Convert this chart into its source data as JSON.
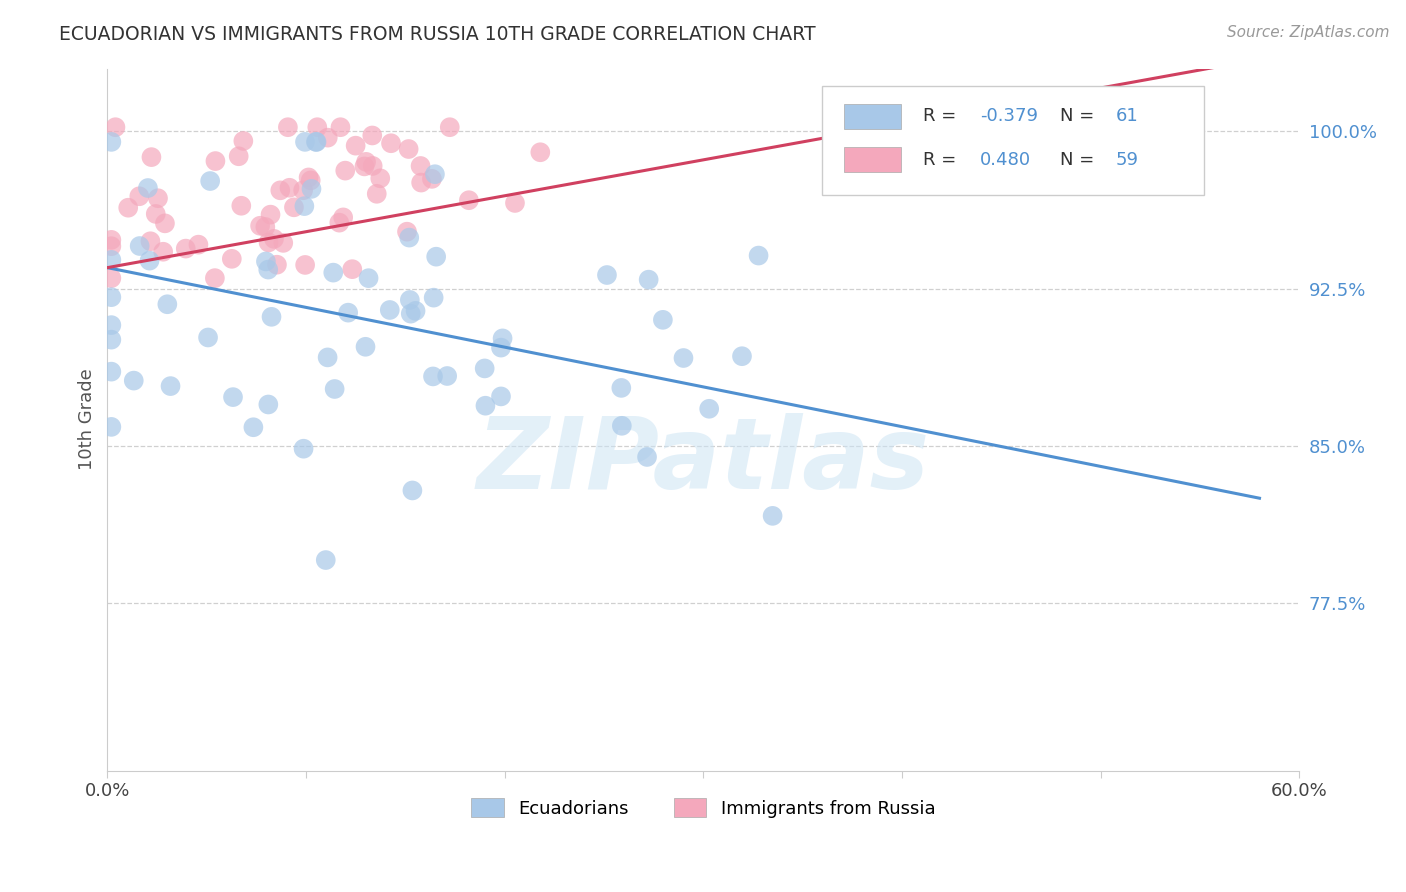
{
  "title": "ECUADORIAN VS IMMIGRANTS FROM RUSSIA 10TH GRADE CORRELATION CHART",
  "source": "Source: ZipAtlas.com",
  "ylabel": "10th Grade",
  "xlim": [
    0.0,
    0.6
  ],
  "ylim": [
    0.695,
    1.03
  ],
  "yticks": [
    0.775,
    0.85,
    0.925,
    1.0
  ],
  "ytick_labels": [
    "77.5%",
    "85.0%",
    "92.5%",
    "100.0%"
  ],
  "xticks": [
    0.0,
    0.1,
    0.2,
    0.3,
    0.4,
    0.5,
    0.6
  ],
  "xtick_labels": [
    "0.0%",
    "",
    "",
    "",
    "",
    "",
    "60.0%"
  ],
  "blue_R": -0.379,
  "blue_N": 61,
  "pink_R": 0.48,
  "pink_N": 59,
  "blue_color": "#a8c8e8",
  "pink_color": "#f4a8bc",
  "blue_line_color": "#5090d0",
  "pink_line_color": "#d04060",
  "watermark": "ZIPatlas",
  "legend_label_blue": "Ecuadorians",
  "legend_label_pink": "Immigrants from Russia"
}
